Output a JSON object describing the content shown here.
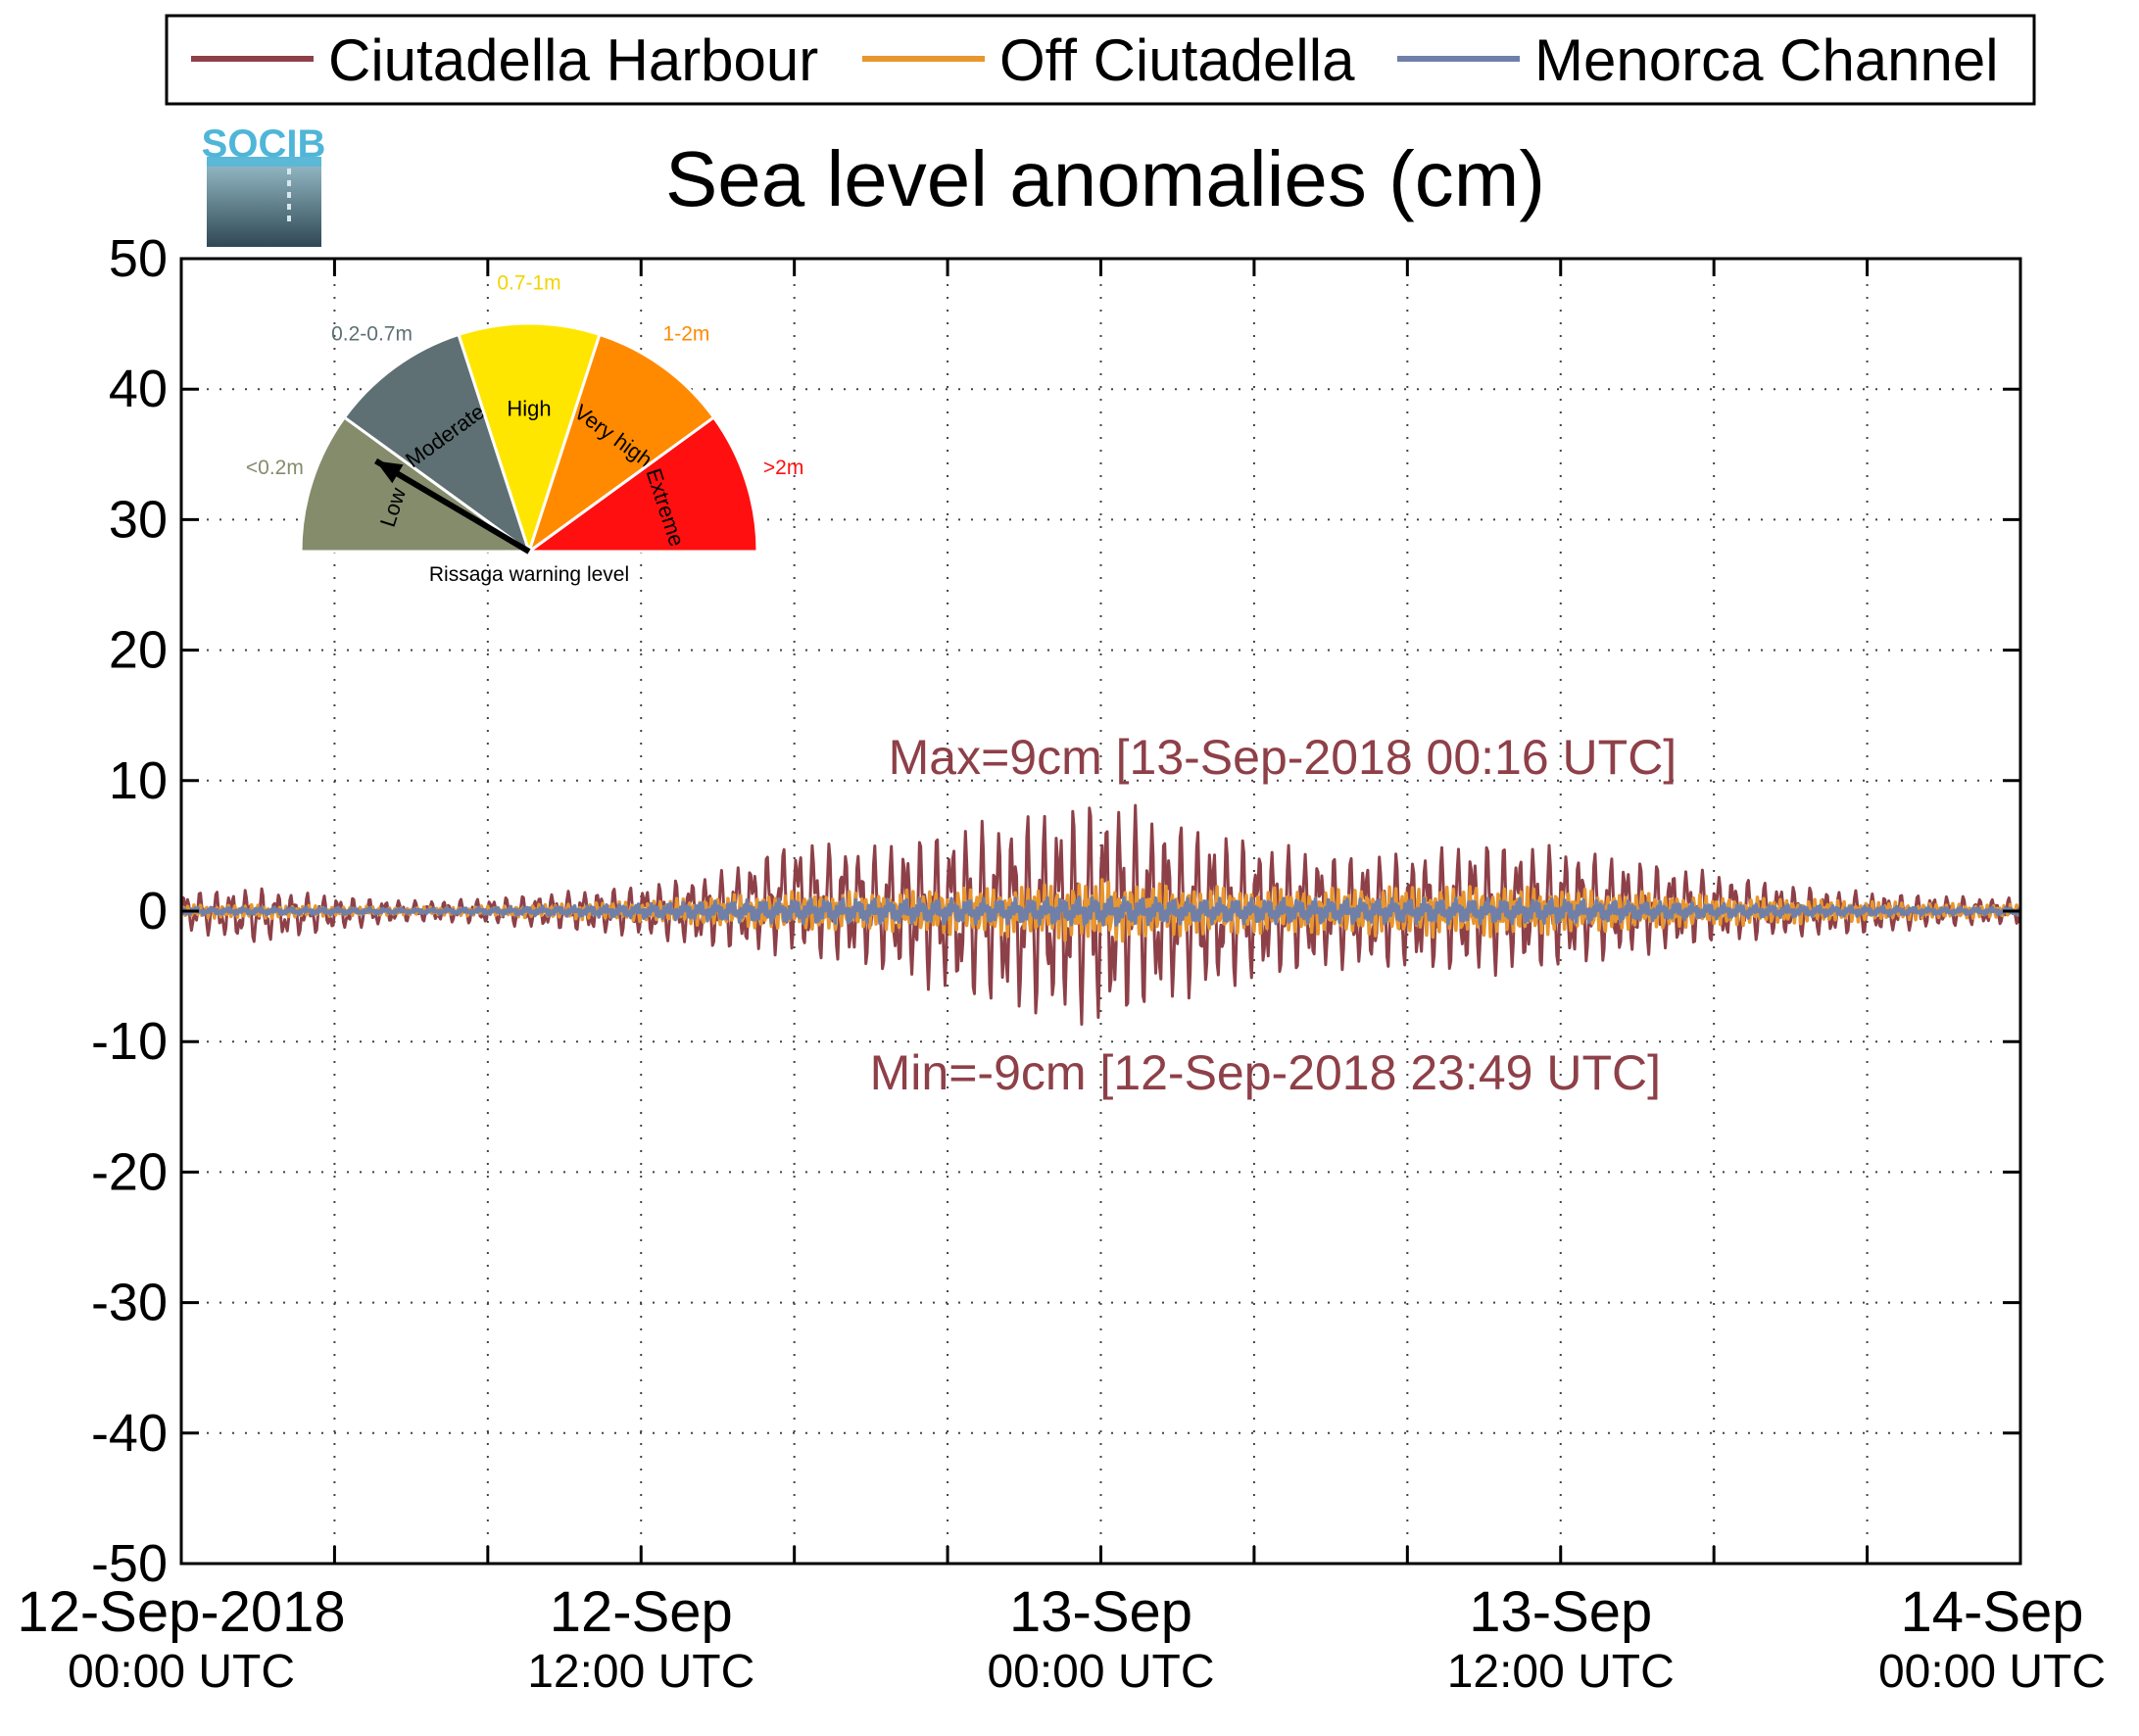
{
  "chart_data": {
    "type": "line",
    "title": "Sea level anomalies (cm)",
    "xlabel": "",
    "ylabel": "",
    "ylim": [
      -50,
      50
    ],
    "yticks": [
      50,
      40,
      30,
      20,
      10,
      0,
      -10,
      -20,
      -30,
      -40,
      -50
    ],
    "xlim": [
      "2018-09-12 00:00",
      "2018-09-14 00:00"
    ],
    "x_ticks": [
      {
        "x": "2018-09-12 00:00",
        "line1": "12-Sep-2018",
        "line2": "00:00 UTC"
      },
      {
        "x": "2018-09-12 12:00",
        "line1": "12-Sep",
        "line2": "12:00 UTC"
      },
      {
        "x": "2018-09-13 00:00",
        "line1": "13-Sep",
        "line2": "00:00 UTC"
      },
      {
        "x": "2018-09-13 12:00",
        "line1": "13-Sep",
        "line2": "12:00 UTC"
      },
      {
        "x": "2018-09-14 00:00",
        "line1": "14-Sep",
        "line2": "00:00 UTC"
      }
    ],
    "grid": true,
    "legend_position": "top",
    "series": [
      {
        "name": "Ciutadella Harbour",
        "color": "#8e4048",
        "x": [
          "2018-09-12 00:00",
          "2018-09-12 02:00",
          "2018-09-12 04:00",
          "2018-09-12 06:00",
          "2018-09-12 08:00",
          "2018-09-12 10:00",
          "2018-09-12 12:00",
          "2018-09-12 14:00",
          "2018-09-12 16:00",
          "2018-09-12 18:00",
          "2018-09-12 20:00",
          "2018-09-12 22:00",
          "2018-09-13 00:00",
          "2018-09-13 02:00",
          "2018-09-13 04:00",
          "2018-09-13 06:00",
          "2018-09-13 08:00",
          "2018-09-13 10:00",
          "2018-09-13 12:00",
          "2018-09-13 14:00",
          "2018-09-13 16:00",
          "2018-09-13 18:00",
          "2018-09-13 20:00",
          "2018-09-13 22:00",
          "2018-09-14 00:00"
        ],
        "envelope_high": [
          1.5,
          1.8,
          1.2,
          0.8,
          1.0,
          1.5,
          2.0,
          3.0,
          5.5,
          5.0,
          6.5,
          7.5,
          9.0,
          7.0,
          5.5,
          4.5,
          4.5,
          5.5,
          5.0,
          4.0,
          3.0,
          2.0,
          1.5,
          1.2,
          1.0
        ],
        "envelope_low": [
          -1.5,
          -2.5,
          -1.5,
          -0.8,
          -1.0,
          -1.5,
          -2.0,
          -3.0,
          -3.5,
          -4.5,
          -6.5,
          -8.0,
          -9.0,
          -7.0,
          -5.5,
          -4.5,
          -4.5,
          -5.0,
          -4.5,
          -3.5,
          -2.5,
          -2.0,
          -1.8,
          -1.2,
          -1.0
        ]
      },
      {
        "name": "Off Ciutadella",
        "color": "#e8962e",
        "x": [
          "2018-09-12 00:00",
          "2018-09-12 02:00",
          "2018-09-12 04:00",
          "2018-09-12 06:00",
          "2018-09-12 08:00",
          "2018-09-12 10:00",
          "2018-09-12 12:00",
          "2018-09-12 14:00",
          "2018-09-12 16:00",
          "2018-09-12 18:00",
          "2018-09-12 20:00",
          "2018-09-12 22:00",
          "2018-09-13 00:00",
          "2018-09-13 02:00",
          "2018-09-13 04:00",
          "2018-09-13 06:00",
          "2018-09-13 08:00",
          "2018-09-13 10:00",
          "2018-09-13 12:00",
          "2018-09-13 14:00",
          "2018-09-13 16:00",
          "2018-09-13 18:00",
          "2018-09-13 20:00",
          "2018-09-13 22:00",
          "2018-09-14 00:00"
        ],
        "envelope_high": [
          0.5,
          0.5,
          0.4,
          0.3,
          0.4,
          0.6,
          0.8,
          1.2,
          1.5,
          1.5,
          1.8,
          2.0,
          2.5,
          2.0,
          1.8,
          1.8,
          2.0,
          2.0,
          1.8,
          1.5,
          1.2,
          1.0,
          0.8,
          0.6,
          0.5
        ],
        "envelope_low": [
          -0.5,
          -0.6,
          -0.4,
          -0.3,
          -0.4,
          -0.6,
          -0.8,
          -1.2,
          -1.5,
          -1.5,
          -1.8,
          -2.0,
          -2.5,
          -2.0,
          -1.8,
          -1.8,
          -2.0,
          -2.0,
          -1.8,
          -1.5,
          -1.2,
          -1.0,
          -0.8,
          -0.6,
          -0.5
        ]
      },
      {
        "name": "Menorca Channel",
        "color": "#6f7fa8",
        "x": [
          "2018-09-12 00:00",
          "2018-09-12 02:00",
          "2018-09-12 04:00",
          "2018-09-12 06:00",
          "2018-09-12 08:00",
          "2018-09-12 10:00",
          "2018-09-12 12:00",
          "2018-09-12 14:00",
          "2018-09-12 16:00",
          "2018-09-12 18:00",
          "2018-09-12 20:00",
          "2018-09-12 22:00",
          "2018-09-13 00:00",
          "2018-09-13 02:00",
          "2018-09-13 04:00",
          "2018-09-13 06:00",
          "2018-09-13 08:00",
          "2018-09-13 10:00",
          "2018-09-13 12:00",
          "2018-09-13 14:00",
          "2018-09-13 16:00",
          "2018-09-13 18:00",
          "2018-09-13 20:00",
          "2018-09-13 22:00",
          "2018-09-14 00:00"
        ],
        "envelope_high": [
          0.3,
          0.3,
          0.3,
          0.2,
          0.3,
          0.4,
          0.6,
          0.8,
          1.0,
          1.0,
          1.0,
          1.0,
          1.2,
          1.0,
          1.0,
          1.0,
          1.0,
          1.0,
          1.0,
          0.8,
          0.6,
          0.5,
          0.4,
          0.3,
          0.3
        ],
        "envelope_low": [
          -0.3,
          -0.3,
          -0.3,
          -0.2,
          -0.3,
          -0.4,
          -0.6,
          -0.8,
          -1.0,
          -1.0,
          -1.0,
          -1.0,
          -1.2,
          -1.0,
          -1.0,
          -1.0,
          -1.0,
          -1.0,
          -1.0,
          -0.8,
          -0.6,
          -0.5,
          -0.4,
          -0.3,
          -0.3
        ]
      }
    ],
    "annotations": [
      {
        "text": "Max=9cm [13-Sep-2018 00:16 UTC]",
        "x": "2018-09-13 00:16",
        "y": 9,
        "color": "#8e4048"
      },
      {
        "text": "Min=-9cm [12-Sep-2018 23:49 UTC]",
        "x": "2018-09-12 23:49",
        "y": -9,
        "color": "#8e4048"
      }
    ]
  },
  "logo": {
    "text": "SOCIB"
  },
  "gauge": {
    "title": "Rissaga warning level",
    "current_level": "Low",
    "sectors": [
      {
        "name": "Low",
        "range": "<0.2m",
        "color": "#848c6c",
        "range_color": "#848c6c"
      },
      {
        "name": "Moderate",
        "range": "0.2-0.7m",
        "color": "#5e7074",
        "range_color": "#5e7074"
      },
      {
        "name": "High",
        "range": "0.7-1m",
        "color": "#ffe600",
        "range_color": "#f2d400"
      },
      {
        "name": "Very high",
        "range": "1-2m",
        "color": "#ff8a00",
        "range_color": "#ff8a00"
      },
      {
        "name": "Extreme",
        "range": ">2m",
        "color": "#ff0f0f",
        "range_color": "#ff0f0f"
      }
    ]
  }
}
